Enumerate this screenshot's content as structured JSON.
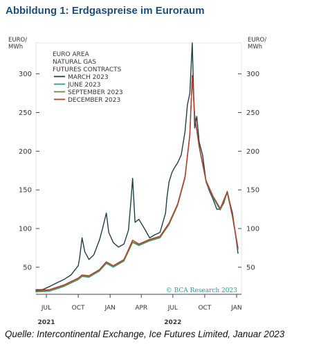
{
  "heading": "Abbildung 1: Erdgaspreise im Euroraum",
  "source": "Quelle: Intercontinental Exchange, Ice Futures Limited, Januar 2023",
  "chart_data": {
    "type": "line",
    "title": "",
    "legend_title": [
      "EURO AREA",
      "NATURAL GAS",
      "FUTURES CONTRACTS"
    ],
    "legend_position": "top-left",
    "y_unit_left": [
      "EURO/",
      "MWh"
    ],
    "y_unit_right": [
      "EURO/",
      "MWh"
    ],
    "ylim": [
      15,
      340
    ],
    "yticks": [
      50,
      100,
      150,
      200,
      250,
      300
    ],
    "ytick_labels": [
      "50",
      "100",
      "150",
      "200",
      "250",
      "300"
    ],
    "xlim": [
      "2021-06-01",
      "2023-01-15"
    ],
    "xticks": [
      "2021-07-01",
      "2021-10-01",
      "2022-01-01",
      "2022-04-01",
      "2022-07-01",
      "2022-10-01",
      "2023-01-01"
    ],
    "xtick_labels": [
      "JUL",
      "OCT",
      "JAN",
      "APR",
      "JUL",
      "OCT",
      "JAN"
    ],
    "year_labels": [
      {
        "label": "2021",
        "date": "2021-07-01"
      },
      {
        "label": "2022",
        "date": "2022-07-01"
      }
    ],
    "grid": false,
    "copyright": "© BCA Research 2023",
    "series": [
      {
        "name": "MARCH 2023",
        "color": "#1f3f45",
        "x": [
          "2021-06-01",
          "2021-06-20",
          "2021-07-10",
          "2021-08-01",
          "2021-08-20",
          "2021-09-10",
          "2021-10-01",
          "2021-10-05",
          "2021-10-12",
          "2021-10-20",
          "2021-11-01",
          "2021-11-15",
          "2021-12-01",
          "2021-12-10",
          "2021-12-21",
          "2021-12-28",
          "2022-01-10",
          "2022-01-25",
          "2022-02-10",
          "2022-02-23",
          "2022-03-02",
          "2022-03-07",
          "2022-03-14",
          "2022-03-25",
          "2022-04-10",
          "2022-04-25",
          "2022-05-10",
          "2022-05-25",
          "2022-06-10",
          "2022-06-14",
          "2022-06-20",
          "2022-06-28",
          "2022-07-05",
          "2022-07-15",
          "2022-07-25",
          "2022-08-05",
          "2022-08-12",
          "2022-08-19",
          "2022-08-26",
          "2022-08-29",
          "2022-09-02",
          "2022-09-08",
          "2022-09-15",
          "2022-09-25",
          "2022-10-05",
          "2022-10-15",
          "2022-10-25",
          "2022-11-05",
          "2022-11-15",
          "2022-11-25",
          "2022-12-05",
          "2022-12-12",
          "2022-12-20",
          "2022-12-28",
          "2023-01-05"
        ],
        "values": [
          21,
          21,
          25,
          30,
          34,
          40,
          52,
          62,
          88,
          70,
          60,
          66,
          85,
          100,
          120,
          95,
          82,
          76,
          80,
          98,
          135,
          165,
          108,
          112,
          100,
          88,
          92,
          95,
          120,
          140,
          160,
          172,
          178,
          185,
          195,
          225,
          260,
          275,
          340,
          290,
          230,
          245,
          212,
          195,
          160,
          148,
          138,
          125,
          125,
          133,
          148,
          134,
          120,
          95,
          68
        ]
      },
      {
        "name": "JUNE 2023",
        "color": "#2a9d8f",
        "x": [
          "2021-06-01",
          "2021-07-10",
          "2021-08-20",
          "2021-10-01",
          "2021-10-12",
          "2021-11-01",
          "2021-12-01",
          "2021-12-21",
          "2022-01-10",
          "2022-02-10",
          "2022-03-07",
          "2022-03-25",
          "2022-04-25",
          "2022-05-25",
          "2022-06-20",
          "2022-07-15",
          "2022-08-05",
          "2022-08-19",
          "2022-08-26",
          "2022-09-02",
          "2022-09-15",
          "2022-10-05",
          "2022-10-25",
          "2022-11-15",
          "2022-12-05",
          "2022-12-20",
          "2023-01-05"
        ],
        "values": [
          18,
          19,
          25,
          34,
          38,
          37,
          45,
          55,
          50,
          58,
          82,
          78,
          84,
          88,
          105,
          130,
          165,
          220,
          296,
          245,
          205,
          160,
          140,
          124,
          146,
          115,
          73
        ]
      },
      {
        "name": "SEPTEMBER 2023",
        "color": "#6a8c3a",
        "x": [
          "2021-06-01",
          "2021-07-10",
          "2021-08-20",
          "2021-10-01",
          "2021-10-12",
          "2021-11-01",
          "2021-12-01",
          "2021-12-21",
          "2022-01-10",
          "2022-02-10",
          "2022-03-07",
          "2022-03-25",
          "2022-04-25",
          "2022-05-25",
          "2022-06-20",
          "2022-07-15",
          "2022-08-05",
          "2022-08-19",
          "2022-08-26",
          "2022-09-02",
          "2022-09-15",
          "2022-10-05",
          "2022-10-25",
          "2022-11-15",
          "2022-12-05",
          "2022-12-20",
          "2023-01-05"
        ],
        "values": [
          19,
          20,
          26,
          35,
          39,
          38,
          46,
          56,
          51,
          59,
          83,
          79,
          85,
          89,
          106,
          131,
          166,
          221,
          297,
          246,
          206,
          161,
          141,
          125,
          147,
          116,
          74
        ]
      },
      {
        "name": "DECEMBER 2023",
        "color": "#c0392b",
        "x": [
          "2021-06-01",
          "2021-07-10",
          "2021-08-20",
          "2021-10-01",
          "2021-10-12",
          "2021-11-01",
          "2021-12-01",
          "2021-12-21",
          "2022-01-10",
          "2022-02-10",
          "2022-03-07",
          "2022-03-25",
          "2022-04-25",
          "2022-05-25",
          "2022-06-20",
          "2022-07-15",
          "2022-08-05",
          "2022-08-19",
          "2022-08-26",
          "2022-09-02",
          "2022-09-15",
          "2022-10-05",
          "2022-10-25",
          "2022-11-15",
          "2022-12-05",
          "2022-12-20",
          "2023-01-05"
        ],
        "values": [
          20,
          21,
          27,
          36,
          40,
          39,
          47,
          57,
          52,
          60,
          85,
          80,
          86,
          90,
          107,
          132,
          167,
          222,
          298,
          247,
          207,
          162,
          142,
          126,
          148,
          117,
          75
        ]
      }
    ]
  }
}
